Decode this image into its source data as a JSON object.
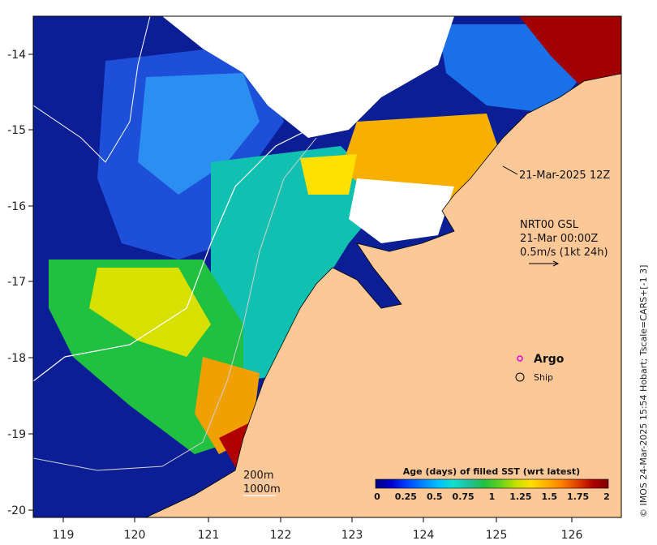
{
  "map": {
    "x_ticks": [
      "119",
      "120",
      "121",
      "122",
      "123",
      "124",
      "125",
      "126"
    ],
    "y_ticks": [
      "-14",
      "-15",
      "-16",
      "-17",
      "-18",
      "-19",
      "-20"
    ],
    "timestamp": "21-Mar-2025 12Z",
    "current_label_1": "NRT00 GSL",
    "current_label_2": "21-Mar 00:00Z",
    "current_label_3": "0.5m/s (1kt 24h)",
    "argo_label": "Argo",
    "ship_label": "Ship",
    "depth_200": "200m",
    "depth_1000": "1000m",
    "credit": "© IMOS 24-Mar-2025 15:54 Hobart; Tscale=CARS+[-1 3]"
  },
  "legend": {
    "title": "Age (days) of filled SST (wrt latest)",
    "ticks": [
      "0",
      "0.25",
      "0.5",
      "0.75",
      "1",
      "1.25",
      "1.5",
      "1.75",
      "2"
    ],
    "colors": [
      "#00007f",
      "#0000cc",
      "#0040ff",
      "#0080ff",
      "#00bfff",
      "#10e0d0",
      "#20c0a0",
      "#20c040",
      "#60d020",
      "#c0e000",
      "#ffe000",
      "#ffb000",
      "#ff8000",
      "#e04000",
      "#b00000",
      "#800000"
    ]
  },
  "colors": {
    "land": "#fcc897",
    "deep_ocean": "#0b1e96",
    "no_data": "#ffffff"
  }
}
